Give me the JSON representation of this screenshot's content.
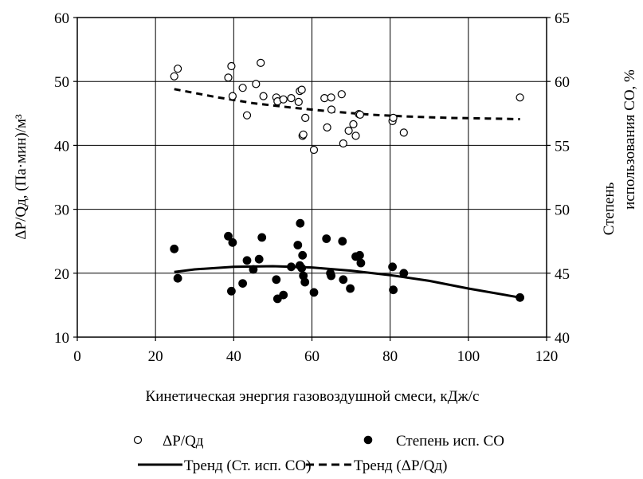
{
  "chart_data": {
    "type": "scatter",
    "xlabel": "Кинетическая энергия газовоздушной смеси, кДж/с",
    "ylabel": "ΔP/Qд, (Па·мин)/м³",
    "y2label_line1": "Степень",
    "y2label_line2": "использования СО, %",
    "xlim": [
      0,
      120
    ],
    "ylim": [
      10,
      60
    ],
    "y2lim": [
      40,
      65
    ],
    "x_ticks": [
      "0",
      "20",
      "40",
      "60",
      "80",
      "100",
      "120"
    ],
    "y_ticks": [
      "10",
      "20",
      "30",
      "40",
      "50",
      "60"
    ],
    "y2_ticks": [
      "40",
      "45",
      "50",
      "55",
      "60",
      "65"
    ],
    "grid": "major vertical and horizontal",
    "legend_position": "bottom",
    "series": [
      {
        "name": "ΔP/Qд",
        "axis": "left",
        "marker": "open-circle",
        "x": [
          24.8,
          25.7,
          38.6,
          39.4,
          39.7,
          42.3,
          43.4,
          45.7,
          46.9,
          47.6,
          50.9,
          51.2,
          52.7,
          54.7,
          56.6,
          56.9,
          57.4,
          57.6,
          57.8,
          58.3,
          60.5,
          63.2,
          63.9,
          64.9,
          65.0,
          67.6,
          68.0,
          69.4,
          70.6,
          71.2,
          72.0,
          72.3,
          80.6,
          80.8,
          83.5,
          113.2
        ],
        "y": [
          50.8,
          52.0,
          50.6,
          52.4,
          47.7,
          49.0,
          44.7,
          49.6,
          52.9,
          47.7,
          47.5,
          46.9,
          47.2,
          47.4,
          46.8,
          48.5,
          48.7,
          41.5,
          41.7,
          44.3,
          39.3,
          47.4,
          42.8,
          47.5,
          45.6,
          48.0,
          40.3,
          42.3,
          43.3,
          41.5,
          44.9,
          44.8,
          43.8,
          44.3,
          42.0,
          47.5
        ]
      },
      {
        "name": "Степень исп. СО",
        "axis": "right",
        "marker": "filled-circle",
        "x": [
          24.8,
          25.7,
          38.6,
          39.4,
          39.7,
          42.3,
          43.4,
          45.0,
          46.5,
          47.2,
          50.9,
          51.2,
          52.7,
          54.7,
          56.4,
          56.9,
          57.0,
          57.4,
          57.6,
          57.8,
          58.2,
          60.5,
          63.7,
          64.7,
          64.9,
          67.8,
          68.0,
          69.8,
          71.2,
          72.2,
          72.5,
          80.6,
          80.8,
          83.5,
          113.2
        ],
        "y": [
          46.9,
          44.6,
          47.9,
          43.6,
          47.4,
          44.2,
          46.0,
          45.3,
          46.1,
          47.8,
          44.5,
          43.0,
          43.3,
          45.5,
          47.2,
          45.6,
          48.9,
          45.4,
          46.4,
          44.8,
          44.3,
          43.5,
          47.7,
          45.0,
          44.8,
          47.5,
          44.5,
          43.8,
          46.3,
          46.4,
          45.8,
          45.5,
          43.7,
          45.0,
          43.1
        ]
      }
    ],
    "trends": [
      {
        "name": "Тренд (Ст. исп. СО)",
        "axis": "right",
        "style": "solid",
        "x": [
          24.8,
          30,
          40,
          50,
          60,
          70,
          80,
          90,
          100,
          113.2
        ],
        "y": [
          45.1,
          45.3,
          45.5,
          45.55,
          45.45,
          45.2,
          44.85,
          44.4,
          43.8,
          43.1
        ]
      },
      {
        "name": "Тренд (ΔP/Qд)",
        "axis": "left",
        "style": "dashed",
        "x": [
          24.8,
          35,
          45,
          55,
          65,
          75,
          85,
          95,
          105,
          113.2
        ],
        "y": [
          48.8,
          47.6,
          46.6,
          45.9,
          45.3,
          44.8,
          44.5,
          44.3,
          44.2,
          44.1
        ]
      }
    ],
    "legend": {
      "item1": "ΔP/Qд",
      "item2": "Степень исп. СО",
      "item3": "Тренд (Ст. исп. СО)",
      "item4": "Тренд (ΔP/Qд)"
    }
  }
}
